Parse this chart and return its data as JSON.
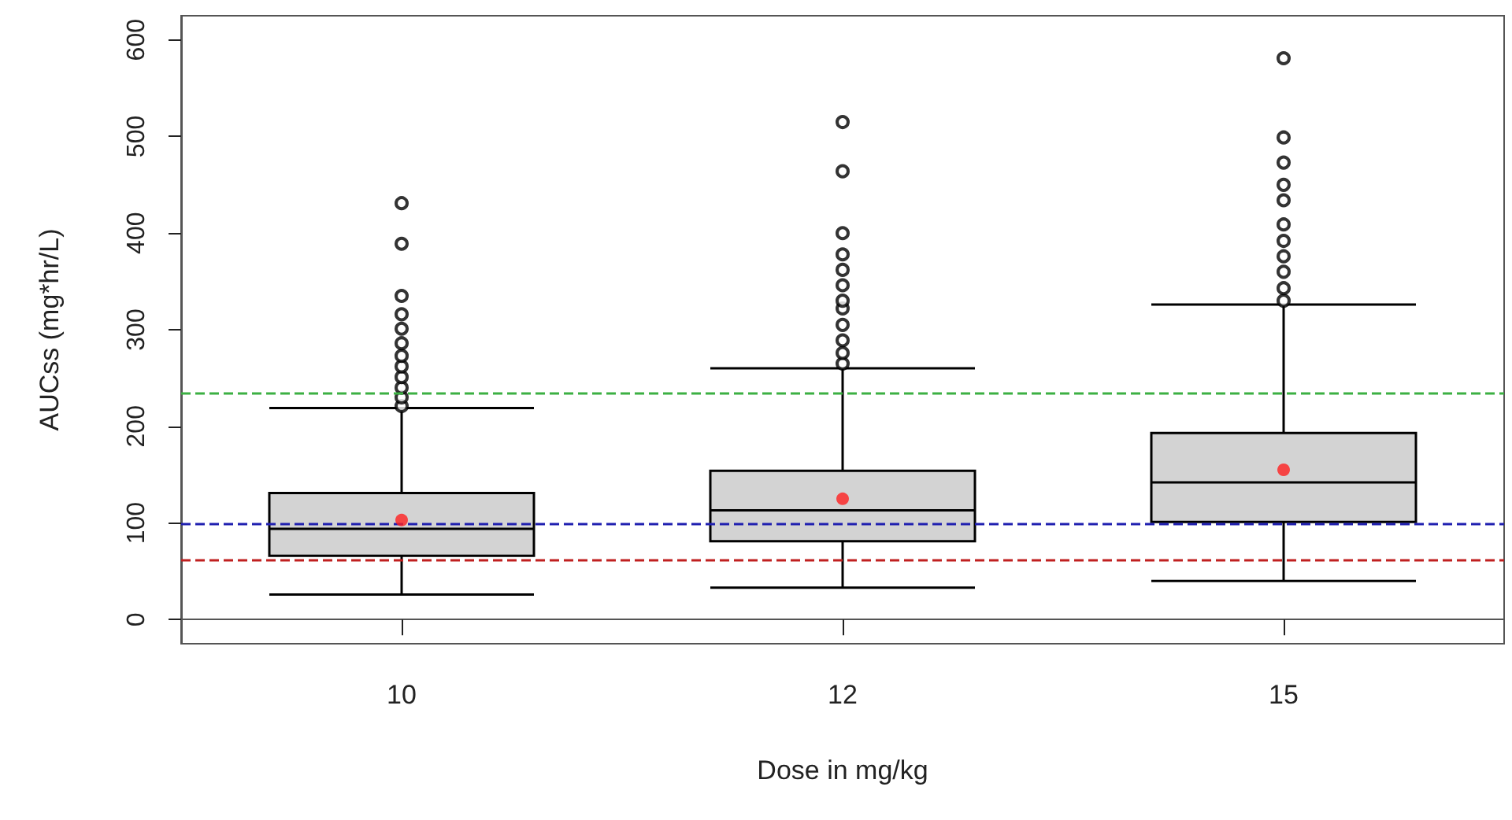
{
  "chart_data": {
    "type": "box",
    "xlabel": "Dose in mg/kg",
    "ylabel": "AUCss (mg*hr/L)",
    "categories": [
      "10",
      "12",
      "15"
    ],
    "series": [
      {
        "color": "#d3d3d3",
        "boxes": [
          {
            "low": 26,
            "q1": 66,
            "median": 94,
            "q3": 131,
            "high": 219,
            "mean": 103,
            "outliers": [
              221,
              230,
              240,
              251,
              262,
              273,
              286,
              301,
              316,
              335,
              389,
              431
            ]
          },
          {
            "low": 33,
            "q1": 81,
            "median": 113,
            "q3": 154,
            "high": 260,
            "mean": 125,
            "outliers": [
              265,
              276,
              289,
              305,
              322,
              330,
              346,
              362,
              378,
              400,
              464,
              515
            ]
          },
          {
            "low": 40,
            "q1": 101,
            "median": 142,
            "q3": 193,
            "high": 326,
            "mean": 155,
            "outliers": [
              330,
              343,
              360,
              376,
              392,
              409,
              434,
              450,
              473,
              499,
              581
            ]
          }
        ]
      }
    ],
    "ylim": [
      -25,
      625
    ],
    "yticks": [
      0,
      100,
      200,
      300,
      400,
      500,
      600
    ],
    "grid": false,
    "ref_lines": [
      {
        "axis": "y",
        "value": 235,
        "color": "#3cb043",
        "line_style": "dashed"
      },
      {
        "axis": "y",
        "value": 100,
        "color": "#2020b0",
        "line_style": "dashed"
      },
      {
        "axis": "y",
        "value": 61,
        "color": "#c02020",
        "line_style": "dashed"
      }
    ]
  }
}
